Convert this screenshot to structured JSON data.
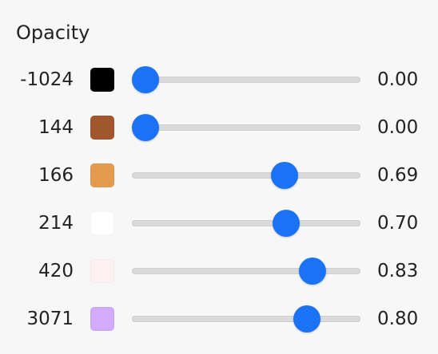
{
  "title": "Opacity",
  "rows": [
    {
      "label": "-1024",
      "color": "#000000",
      "opacity": {
        "value": 0,
        "label": "0.00"
      }
    },
    {
      "label": "144",
      "color": "#a0572e",
      "opacity": {
        "value": 0,
        "label": "0.00"
      }
    },
    {
      "label": "166",
      "color": "#e49b4f",
      "opacity": {
        "value": 0.69,
        "label": "0.69"
      }
    },
    {
      "label": "214",
      "color": "#ffffff",
      "opacity": {
        "value": 0.7,
        "label": "0.70"
      }
    },
    {
      "label": "420",
      "color": "#fff0f1",
      "opacity": {
        "value": 0.83,
        "label": "0.83"
      }
    },
    {
      "label": "3071",
      "color": "#d4aaff",
      "opacity": {
        "value": 0.8,
        "label": "0.80"
      }
    }
  ]
}
